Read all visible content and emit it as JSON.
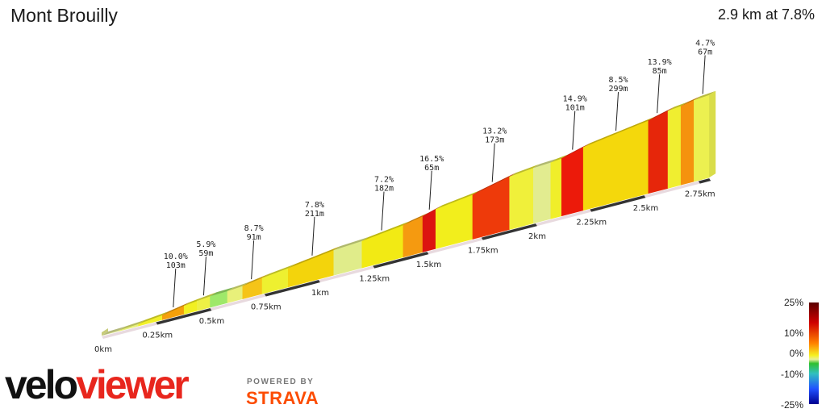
{
  "header": {
    "title": "Mont Brouilly",
    "summary": "2.9 km at 7.8%"
  },
  "chart_data": {
    "type": "area",
    "title": "Mont Brouilly",
    "total_distance_km": 2.9,
    "average_gradient_pct": 7.8,
    "x_ticks": [
      "0km",
      "0.25km",
      "0.5km",
      "0.75km",
      "1km",
      "1.25km",
      "1.5km",
      "1.75km",
      "2km",
      "2.25km",
      "2.5km",
      "2.75km"
    ],
    "segments": [
      {
        "start": 0.0,
        "end": 0.08,
        "grad": 2.0,
        "color": "#e6ec9c"
      },
      {
        "start": 0.08,
        "end": 0.17,
        "grad": 4.0,
        "color": "#e8f078"
      },
      {
        "start": 0.17,
        "end": 0.28,
        "grad": 6.0,
        "color": "#f2f02a"
      },
      {
        "start": 0.28,
        "end": 0.38,
        "grad": 10.0,
        "color": "#f5a00a"
      },
      {
        "start": 0.38,
        "end": 0.44,
        "grad": 6.5,
        "color": "#f2f022"
      },
      {
        "start": 0.44,
        "end": 0.5,
        "grad": 5.9,
        "color": "#eef045"
      },
      {
        "start": 0.5,
        "end": 0.58,
        "grad": 2.0,
        "color": "#9ee86a"
      },
      {
        "start": 0.58,
        "end": 0.65,
        "grad": 4.5,
        "color": "#e8f07a"
      },
      {
        "start": 0.65,
        "end": 0.74,
        "grad": 8.7,
        "color": "#f5c418"
      },
      {
        "start": 0.74,
        "end": 0.86,
        "grad": 6.5,
        "color": "#eef030"
      },
      {
        "start": 0.86,
        "end": 1.07,
        "grad": 7.8,
        "color": "#f3d40c"
      },
      {
        "start": 1.07,
        "end": 1.2,
        "grad": 3.5,
        "color": "#e0ec8a"
      },
      {
        "start": 1.2,
        "end": 1.39,
        "grad": 7.2,
        "color": "#f2ea14"
      },
      {
        "start": 1.39,
        "end": 1.48,
        "grad": 11.0,
        "color": "#f59a10"
      },
      {
        "start": 1.48,
        "end": 1.54,
        "grad": 16.5,
        "color": "#dc1410"
      },
      {
        "start": 1.54,
        "end": 1.71,
        "grad": 7.5,
        "color": "#f2ee1c"
      },
      {
        "start": 1.71,
        "end": 1.88,
        "grad": 13.2,
        "color": "#ee3a0a"
      },
      {
        "start": 1.88,
        "end": 1.99,
        "grad": 6.0,
        "color": "#f0f03a"
      },
      {
        "start": 1.99,
        "end": 2.07,
        "grad": 3.0,
        "color": "#e2ec90"
      },
      {
        "start": 2.07,
        "end": 2.12,
        "grad": 6.5,
        "color": "#f0ee2a"
      },
      {
        "start": 2.12,
        "end": 2.22,
        "grad": 14.9,
        "color": "#ec1a0a"
      },
      {
        "start": 2.22,
        "end": 2.52,
        "grad": 8.5,
        "color": "#f4d80c"
      },
      {
        "start": 2.52,
        "end": 2.61,
        "grad": 13.9,
        "color": "#e6260a"
      },
      {
        "start": 2.61,
        "end": 2.67,
        "grad": 6.0,
        "color": "#f0ee30"
      },
      {
        "start": 2.67,
        "end": 2.73,
        "grad": 11.0,
        "color": "#f5920e"
      },
      {
        "start": 2.73,
        "end": 2.8,
        "grad": 4.7,
        "color": "#ecf050"
      }
    ],
    "annotations": [
      {
        "at": 0.33,
        "grad": "10.0%",
        "len": "103m"
      },
      {
        "at": 0.47,
        "grad": "5.9%",
        "len": "59m"
      },
      {
        "at": 0.69,
        "grad": "8.7%",
        "len": "91m"
      },
      {
        "at": 0.97,
        "grad": "7.8%",
        "len": "211m"
      },
      {
        "at": 1.29,
        "grad": "7.2%",
        "len": "182m"
      },
      {
        "at": 1.51,
        "grad": "16.5%",
        "len": "65m"
      },
      {
        "at": 1.8,
        "grad": "13.2%",
        "len": "173m"
      },
      {
        "at": 2.17,
        "grad": "14.9%",
        "len": "101m"
      },
      {
        "at": 2.37,
        "grad": "8.5%",
        "len": "299m"
      },
      {
        "at": 2.56,
        "grad": "13.9%",
        "len": "85m"
      },
      {
        "at": 2.77,
        "grad": "4.7%",
        "len": "67m"
      }
    ],
    "legend": {
      "labels": [
        "25%",
        "10%",
        "0%",
        "-10%",
        "-25%"
      ],
      "colors": {
        "max": "#5a0000",
        "steep": "#d00000",
        "hard": "#ff8000",
        "moderate": "#f5f020",
        "flat": "#2ec02e",
        "down": "#2050ff",
        "min": "#000090"
      }
    }
  },
  "branding": {
    "logo_part1": "velo",
    "logo_part2": "viewer",
    "powered_by": "POWERED BY",
    "strava": "STRAVA"
  }
}
